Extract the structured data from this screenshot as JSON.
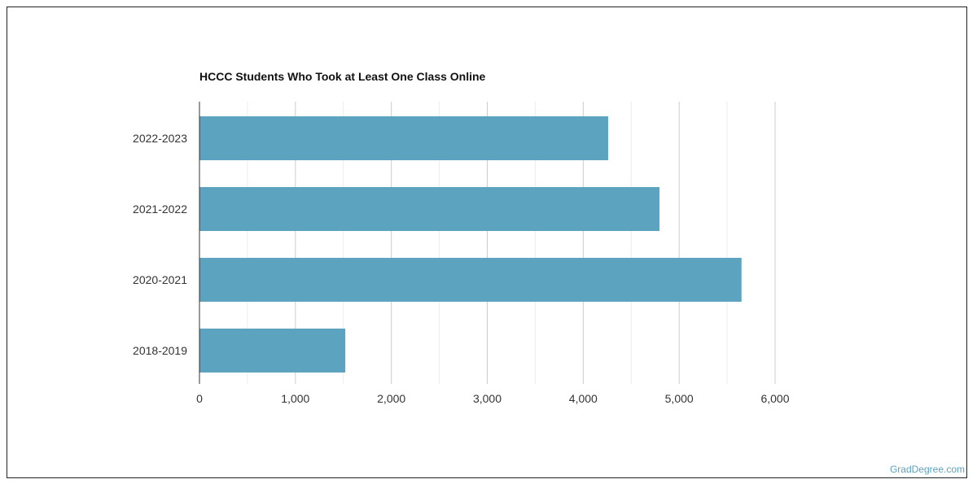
{
  "chart_data": {
    "type": "bar",
    "orientation": "horizontal",
    "title": "HCCC Students Who Took at Least One Class Online",
    "categories": [
      "2022-2023",
      "2021-2022",
      "2020-2021",
      "2018-2019"
    ],
    "values": [
      4260,
      4795,
      5650,
      1520
    ],
    "xlim": [
      0,
      6000
    ],
    "x_ticks": [
      0,
      1000,
      2000,
      3000,
      4000,
      5000,
      6000
    ],
    "x_tick_labels": [
      "0",
      "1,000",
      "2,000",
      "3,000",
      "4,000",
      "5,000",
      "6,000"
    ],
    "bar_color": "#5ba3bf",
    "grid": true,
    "legend": "none"
  },
  "watermark": "GradDegree.com"
}
